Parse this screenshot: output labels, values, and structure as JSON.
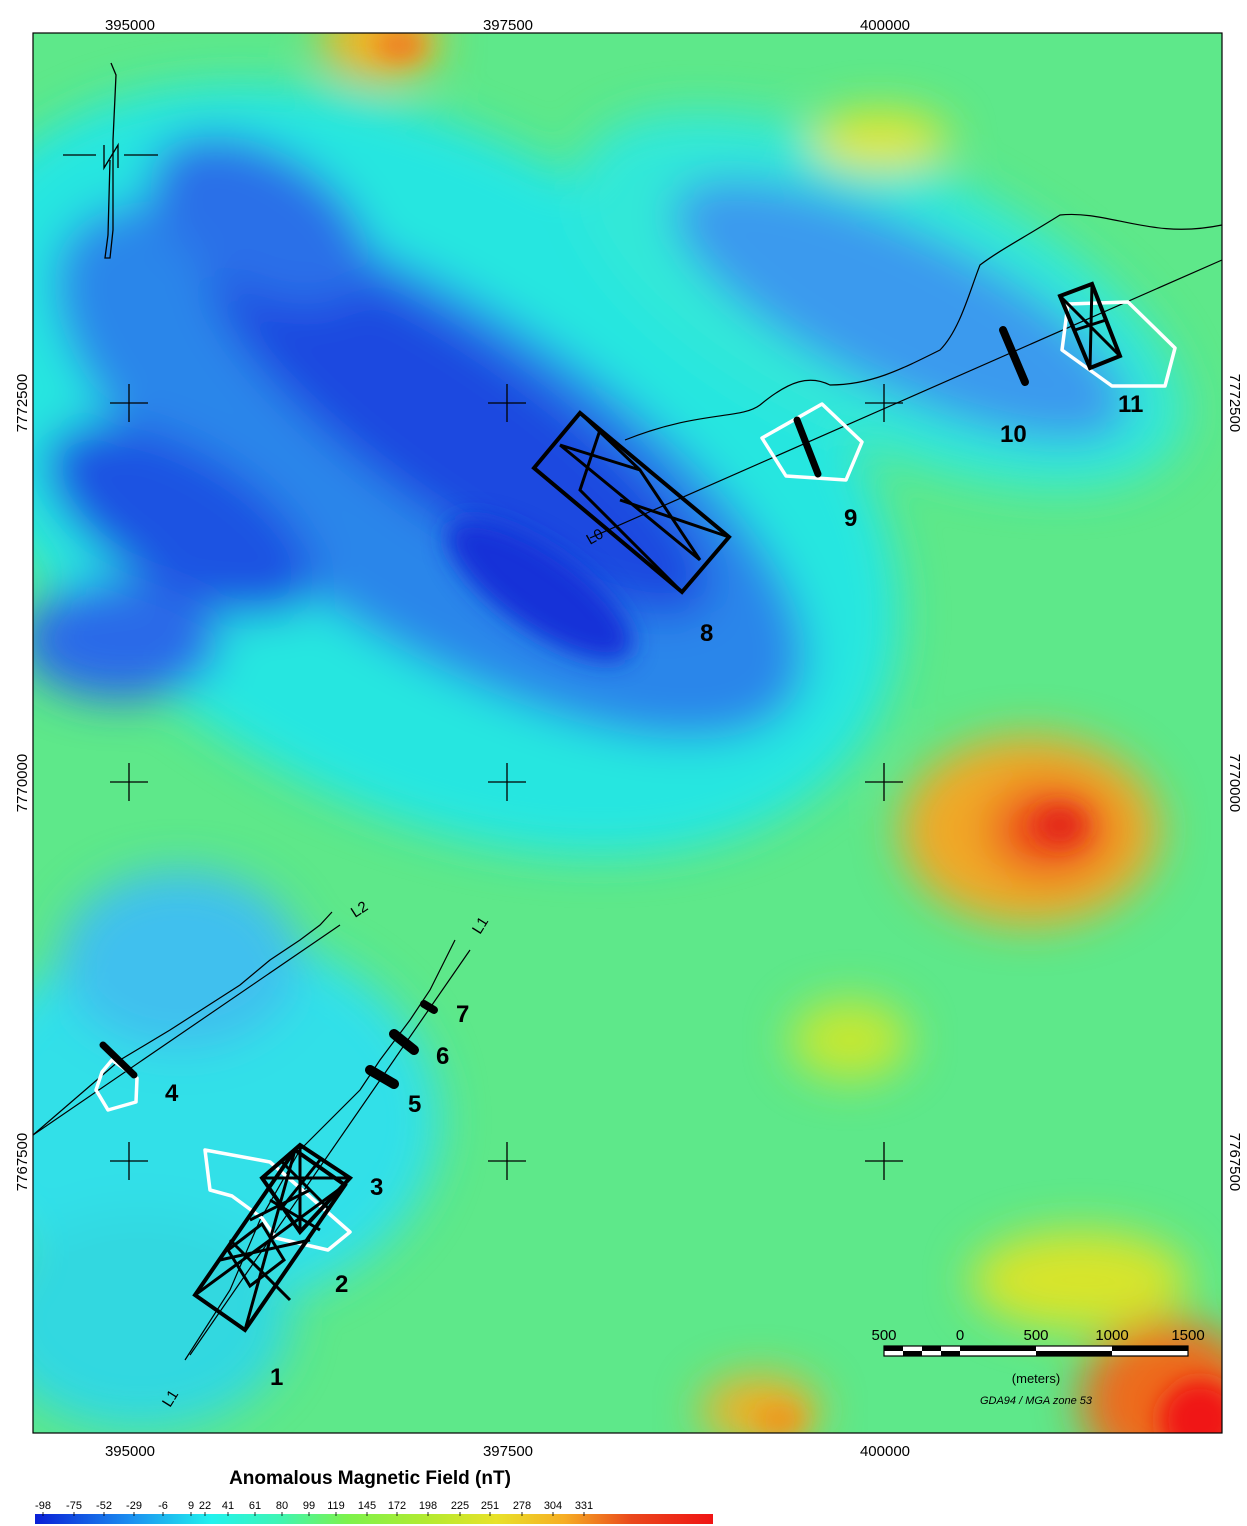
{
  "map": {
    "x_ticks": [
      "395000",
      "397500",
      "400000"
    ],
    "y_ticks": [
      "7772500",
      "7770000",
      "7767500"
    ],
    "survey_lines": [
      "L0",
      "L1",
      "L1",
      "L2"
    ],
    "targets": [
      "1",
      "2",
      "3",
      "4",
      "5",
      "6",
      "7",
      "8",
      "9",
      "10",
      "11"
    ]
  },
  "scale_bar": {
    "labels": [
      "500",
      "0",
      "500",
      "1000",
      "1500"
    ],
    "unit": "(meters)",
    "crs": "GDA94 / MGA zone 53"
  },
  "legend": {
    "title": "Anomalous Magnetic Field (nT)",
    "values": [
      "-98",
      "-75",
      "-52",
      "-29",
      "-6",
      "9",
      "22",
      "41",
      "61",
      "80",
      "99",
      "119",
      "145",
      "172",
      "198",
      "225",
      "251",
      "278",
      "304",
      "331"
    ],
    "colors": [
      "#0a1fd6",
      "#1456e8",
      "#1b8ef0",
      "#20c8f2",
      "#22f2ee",
      "#3ef5b4",
      "#62f57a",
      "#7cf24c",
      "#96ee3a",
      "#b4ea30",
      "#d0e62c",
      "#e8e22a",
      "#f4cc28",
      "#f6ae24",
      "#f48c20",
      "#f06a1e",
      "#ea481c",
      "#e2301a",
      "#dc2018",
      "#f01414"
    ]
  }
}
